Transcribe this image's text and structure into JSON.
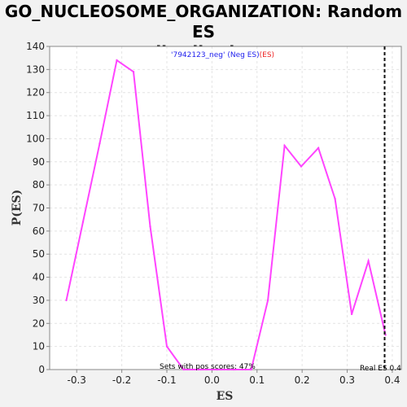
{
  "chart_data": {
    "type": "line",
    "title_line1": "GO_NUCLEOSOME_ORGANIZATION: Random ES",
    "title_line2": "distribution",
    "xlabel": "ES",
    "ylabel": "P(ES)",
    "xlim": [
      -0.36,
      0.42
    ],
    "ylim": [
      0,
      140
    ],
    "x_ticks": [
      "-0.3",
      "-0.2",
      "-0.1",
      "0.0",
      "0.1",
      "0.2",
      "0.3",
      "0.4"
    ],
    "x_tick_values": [
      -0.3,
      -0.2,
      -0.1,
      0.0,
      0.1,
      0.2,
      0.3,
      0.4
    ],
    "y_ticks": [
      "0",
      "10",
      "20",
      "30",
      "40",
      "50",
      "60",
      "70",
      "80",
      "90",
      "100",
      "110",
      "120",
      "130",
      "140"
    ],
    "y_tick_values": [
      0,
      10,
      20,
      30,
      40,
      50,
      60,
      70,
      80,
      90,
      100,
      110,
      120,
      130,
      140
    ],
    "grid": true,
    "legend_text_blue": "'7942123_neg' (Neg ES)",
    "legend_text_red": "(ES)",
    "legend_placement": "top-center",
    "series": [
      {
        "color": "#ff44ff",
        "x": [
          -0.323,
          -0.286,
          -0.249,
          -0.211,
          -0.174,
          -0.137,
          -0.1,
          -0.063,
          -0.025,
          0.012,
          0.049,
          0.087,
          0.124,
          0.161,
          0.198,
          0.236,
          0.273,
          0.31,
          0.347,
          0.385
        ],
        "values": [
          30,
          64,
          98,
          134,
          129,
          62,
          10,
          0,
          0,
          0,
          0,
          0,
          30,
          97,
          88,
          96,
          74,
          24,
          47,
          15
        ]
      }
    ],
    "real_es_value": 0.383,
    "real_es_label": "Real ES 0.4",
    "pos_scores_note": "Sets with pos scores: 47%"
  }
}
